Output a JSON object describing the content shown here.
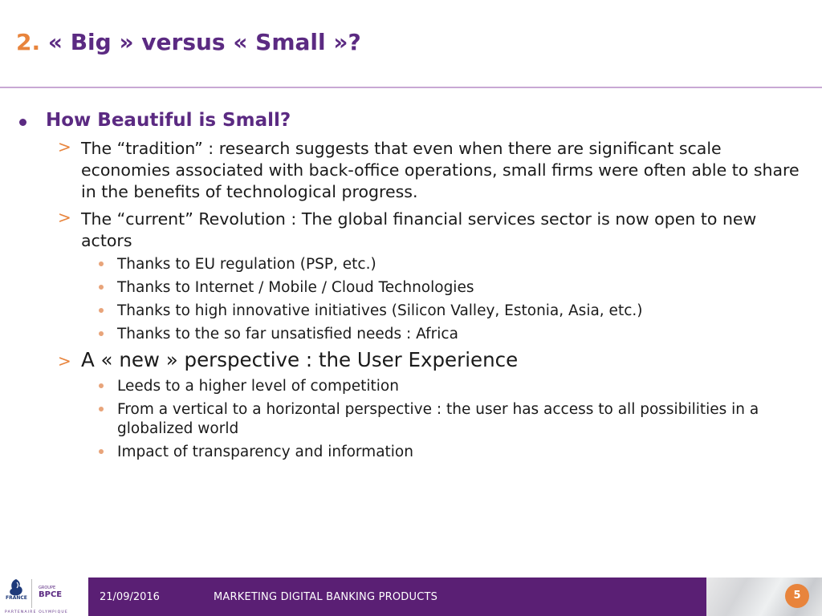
{
  "slide": {
    "title_number": "2.",
    "title_text": "« Big » versus « Small »?",
    "heading": "How Beautiful is Small?",
    "points": [
      {
        "text": "The “tradition” : research suggests that even when there are significant scale economies associated with back-office operations, small firms were often able to share in the benefits of technological progress."
      },
      {
        "text": "The “current” Revolution : The global financial services sector is now open to new actors",
        "subpoints": [
          "Thanks to EU regulation (PSP, etc.)",
          "Thanks to Internet / Mobile / Cloud Technologies",
          "Thanks to high innovative initiatives (Silicon Valley, Estonia, Asia, etc.)",
          "Thanks to the so far unsatisfied needs : Africa"
        ]
      },
      {
        "text": "A « new » perspective : the User Experience",
        "subpoints": [
          "Leeds to a higher level of competition",
          "From a vertical to a horizontal perspective : the user has access to all possibilities in a globalized world",
          "Impact of transparency and information"
        ]
      }
    ]
  },
  "footer": {
    "date": "21/09/2016",
    "title": "MARKETING DIGITAL BANKING PRODUCTS",
    "page_number": "5"
  },
  "logos": {
    "france_label": "FRANCE",
    "groupe_label": "GROUPE",
    "bpce_label": "BPCE",
    "partner_label": "PARTENAIRE OLYMPIQUE"
  },
  "colors": {
    "title_purple": "#5b2a82",
    "accent_orange": "#e8843c",
    "footer_purple": "#5a1f74",
    "rule_lilac": "#c8a8d4"
  },
  "icons": {
    "level1_bullet": "filled-circle",
    "level2_bullet": "chevron-right",
    "level3_bullet": "small-dot"
  }
}
